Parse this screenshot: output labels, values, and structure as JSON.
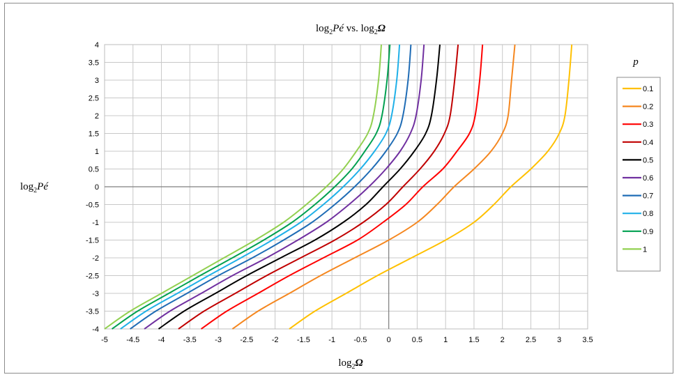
{
  "chart_data": {
    "type": "line",
    "title": {
      "pre": "log",
      "sub": "2",
      "italic": "Pé",
      "mid": " vs. log",
      "sub2": "2",
      "italic2": "Ω"
    },
    "xlabel": {
      "pre": "log",
      "sub": "2",
      "italic": "Ω"
    },
    "ylabel": {
      "pre": "log",
      "sub": "2",
      "italic": "Pé"
    },
    "xlim": [
      -5,
      3.5
    ],
    "ylim": [
      -4,
      4
    ],
    "x_ticks": [
      "-5",
      "-4.5",
      "-4",
      "-3.5",
      "-3",
      "-2.5",
      "-2",
      "-1.5",
      "-1",
      "-0.5",
      "0",
      "0.5",
      "1",
      "1.5",
      "2",
      "2.5",
      "3",
      "3.5"
    ],
    "y_ticks": [
      "4",
      "3.5",
      "3",
      "2.5",
      "2",
      "1.5",
      "1",
      "0.5",
      "0",
      "-0.5",
      "-1",
      "-1.5",
      "-2",
      "-2.5",
      "-3",
      "-3.5",
      "-4"
    ],
    "grid": true,
    "legend": {
      "title": "p",
      "placement": "right"
    },
    "series": [
      {
        "name": "0.1",
        "color": "#ffc000",
        "x": [
          -1.75,
          -1.3,
          -0.75,
          -0.2,
          0.4,
          1.0,
          1.5,
          1.85,
          2.15,
          2.5,
          2.8,
          3.0,
          3.1,
          3.17,
          3.22
        ],
        "y": [
          -4,
          -3.5,
          -3,
          -2.5,
          -2,
          -1.5,
          -1,
          -0.5,
          0,
          0.5,
          1,
          1.5,
          2,
          3,
          4
        ]
      },
      {
        "name": "0.2",
        "color": "#f5871f",
        "x": [
          -2.75,
          -2.3,
          -1.75,
          -1.2,
          -0.6,
          0.0,
          0.5,
          0.85,
          1.15,
          1.5,
          1.8,
          2.0,
          2.1,
          2.16,
          2.22
        ],
        "y": [
          -4,
          -3.5,
          -3,
          -2.5,
          -2,
          -1.5,
          -1,
          -0.5,
          0,
          0.5,
          1,
          1.5,
          2,
          3,
          4
        ]
      },
      {
        "name": "0.3",
        "color": "#ff0000",
        "x": [
          -3.3,
          -2.85,
          -2.3,
          -1.75,
          -1.15,
          -0.55,
          -0.1,
          0.3,
          0.6,
          0.95,
          1.2,
          1.42,
          1.52,
          1.6,
          1.65
        ],
        "y": [
          -4,
          -3.5,
          -3,
          -2.5,
          -2,
          -1.5,
          -1,
          -0.5,
          0,
          0.5,
          1,
          1.5,
          2,
          3,
          4
        ]
      },
      {
        "name": "0.4",
        "color": "#c00000",
        "x": [
          -3.7,
          -3.25,
          -2.7,
          -2.15,
          -1.55,
          -0.95,
          -0.45,
          -0.05,
          0.25,
          0.55,
          0.8,
          0.98,
          1.08,
          1.16,
          1.22
        ],
        "y": [
          -4,
          -3.5,
          -3,
          -2.5,
          -2,
          -1.5,
          -1,
          -0.5,
          0,
          0.5,
          1,
          1.5,
          2,
          3,
          4
        ]
      },
      {
        "name": "0.5",
        "color": "#000000",
        "x": [
          -4.05,
          -3.6,
          -3.05,
          -2.5,
          -1.9,
          -1.3,
          -0.8,
          -0.4,
          -0.1,
          0.2,
          0.45,
          0.65,
          0.75,
          0.84,
          0.9
        ],
        "y": [
          -4,
          -3.5,
          -3,
          -2.5,
          -2,
          -1.5,
          -1,
          -0.5,
          0,
          0.5,
          1,
          1.5,
          2,
          3,
          4
        ]
      },
      {
        "name": "0.6",
        "color": "#7030a0",
        "x": [
          -4.3,
          -3.85,
          -3.3,
          -2.75,
          -2.15,
          -1.6,
          -1.1,
          -0.7,
          -0.35,
          -0.05,
          0.2,
          0.38,
          0.48,
          0.57,
          0.62
        ],
        "y": [
          -4,
          -3.5,
          -3,
          -2.5,
          -2,
          -1.5,
          -1,
          -0.5,
          0,
          0.5,
          1,
          1.5,
          2,
          3,
          4
        ]
      },
      {
        "name": "0.7",
        "color": "#1f6cb5",
        "x": [
          -4.55,
          -4.1,
          -3.55,
          -3.0,
          -2.4,
          -1.85,
          -1.35,
          -0.95,
          -0.6,
          -0.3,
          -0.05,
          0.15,
          0.25,
          0.34,
          0.39
        ],
        "y": [
          -4,
          -3.5,
          -3,
          -2.5,
          -2,
          -1.5,
          -1,
          -0.5,
          0,
          0.5,
          1,
          1.5,
          2,
          3,
          4
        ]
      },
      {
        "name": "0.8",
        "color": "#1fb0e8",
        "x": [
          -4.72,
          -4.27,
          -3.72,
          -3.17,
          -2.6,
          -2.05,
          -1.55,
          -1.15,
          -0.8,
          -0.5,
          -0.25,
          -0.05,
          0.05,
          0.14,
          0.19
        ],
        "y": [
          -4,
          -3.5,
          -3,
          -2.5,
          -2,
          -1.5,
          -1,
          -0.5,
          0,
          0.5,
          1,
          1.5,
          2,
          3,
          4
        ]
      },
      {
        "name": "0.9",
        "color": "#00a050",
        "x": [
          -4.87,
          -4.42,
          -3.87,
          -3.32,
          -2.75,
          -2.2,
          -1.7,
          -1.3,
          -0.95,
          -0.65,
          -0.42,
          -0.22,
          -0.12,
          -0.03,
          0.02
        ],
        "y": [
          -4,
          -3.5,
          -3,
          -2.5,
          -2,
          -1.5,
          -1,
          -0.5,
          0,
          0.5,
          1,
          1.5,
          2,
          3,
          4
        ]
      },
      {
        "name": "1",
        "color": "#92d050",
        "x": [
          -5.0,
          -4.55,
          -4.0,
          -3.45,
          -2.9,
          -2.35,
          -1.85,
          -1.45,
          -1.1,
          -0.8,
          -0.57,
          -0.37,
          -0.27,
          -0.18,
          -0.13
        ],
        "y": [
          -4,
          -3.5,
          -3,
          -2.5,
          -2,
          -1.5,
          -1,
          -0.5,
          0,
          0.5,
          1,
          1.5,
          2,
          3,
          4
        ]
      }
    ]
  }
}
